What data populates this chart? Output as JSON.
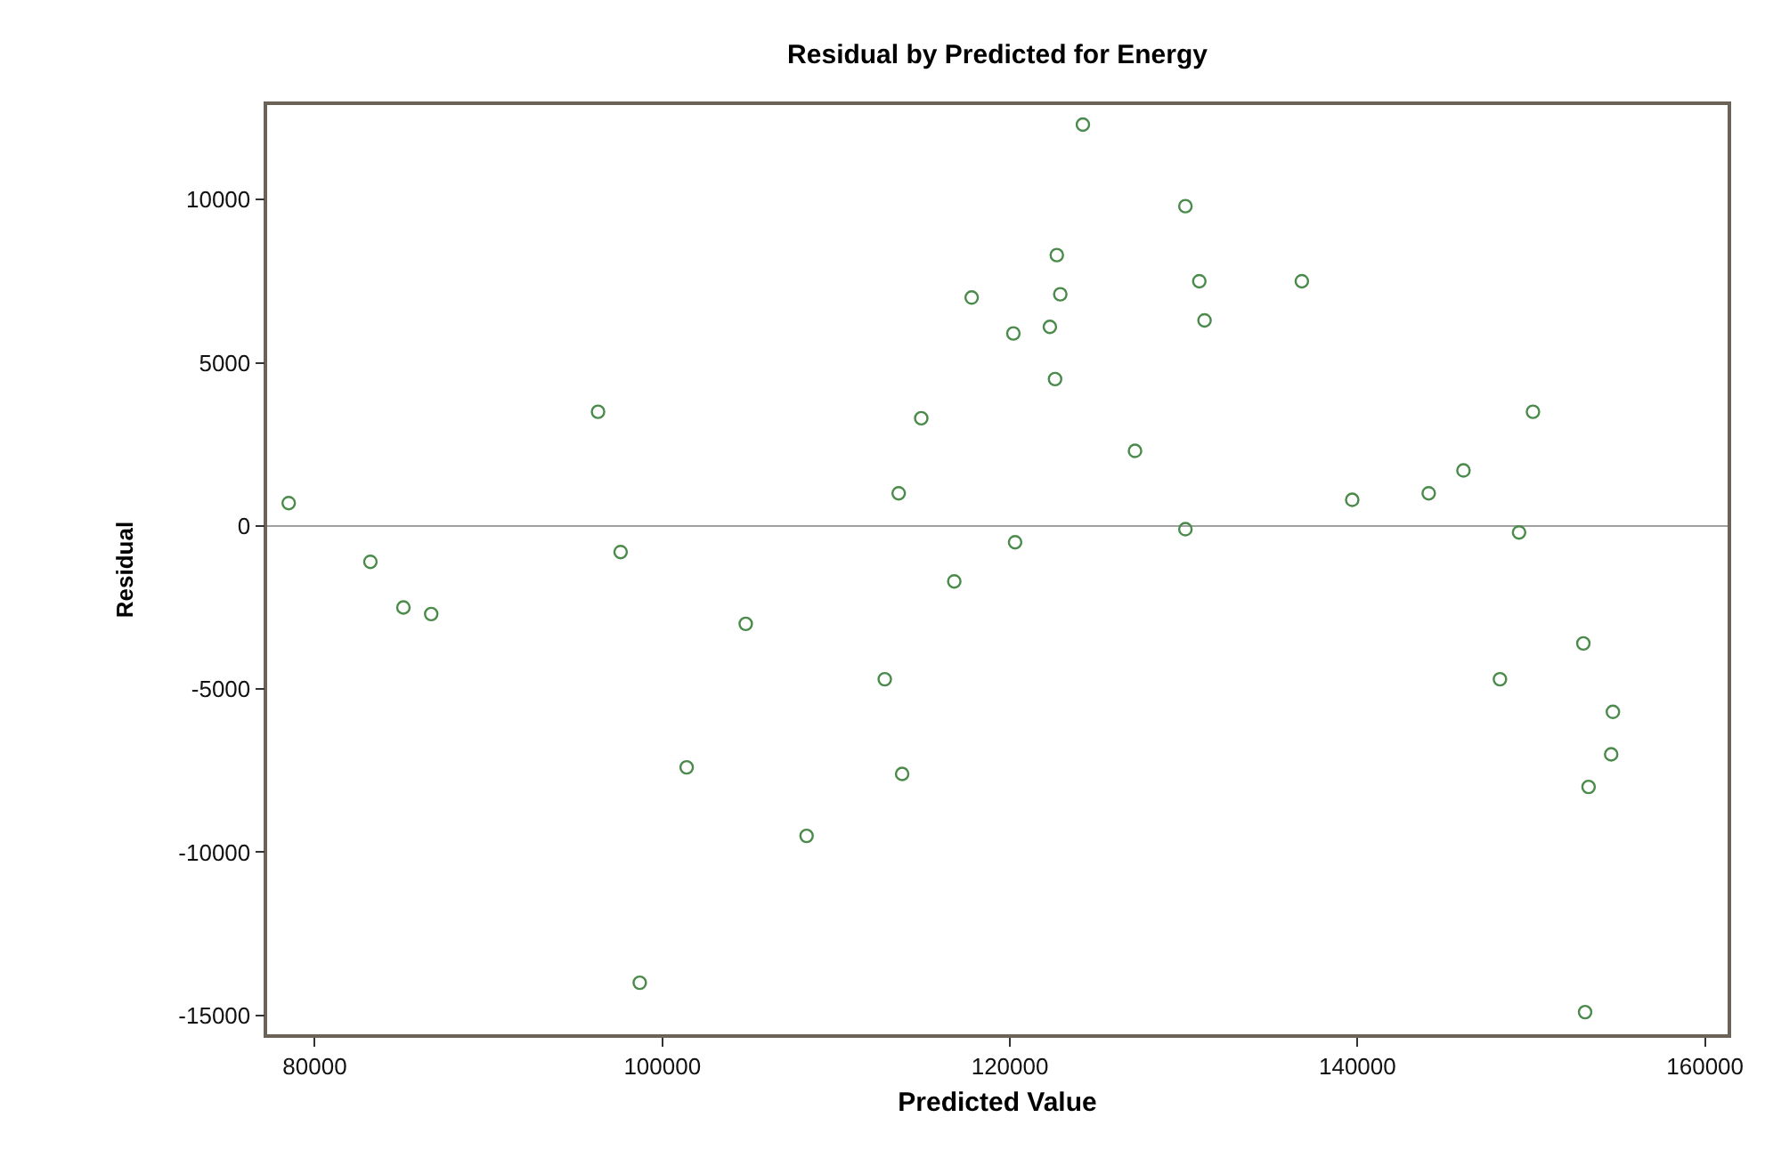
{
  "chart_data": {
    "type": "scatter",
    "title": "Residual by Predicted for Energy",
    "xlabel": "Predicted Value",
    "ylabel": "Residual",
    "x": [
      78500,
      83200,
      85100,
      86700,
      96300,
      97600,
      98700,
      101400,
      104800,
      108300,
      112800,
      113600,
      113800,
      114900,
      116800,
      117800,
      120200,
      120300,
      122300,
      122600,
      122700,
      122900,
      124200,
      127200,
      130100,
      130100,
      130900,
      131200,
      136800,
      139700,
      144100,
      146100,
      148200,
      149300,
      150100,
      153000,
      153100,
      153300,
      154600,
      154700
    ],
    "series": [
      {
        "color": "#4a8a4a",
        "values": [
          700,
          -1100,
          -2500,
          -2700,
          3500,
          -800,
          -14000,
          -7400,
          -3000,
          -9500,
          -4700,
          1000,
          -7600,
          3300,
          -1700,
          7000,
          5900,
          -500,
          6100,
          4500,
          8300,
          7100,
          12300,
          2300,
          9800,
          -100,
          7500,
          6300,
          7500,
          800,
          1000,
          1700,
          -4700,
          -200,
          3500,
          -3600,
          -14900,
          -8000,
          -7000,
          -5700
        ]
      }
    ],
    "xlim": [
      77260,
      161300
    ],
    "xticks": [
      80000,
      100000,
      120000,
      140000,
      160000
    ],
    "ylim": [
      -15580,
      12900
    ],
    "yticks": [
      -15000,
      -10000,
      -5000,
      0,
      5000,
      10000
    ],
    "ref_lines": [
      {
        "axis": "y",
        "value": 0,
        "color": "#a0a0a0"
      }
    ],
    "marker": "circle",
    "grid": false
  }
}
